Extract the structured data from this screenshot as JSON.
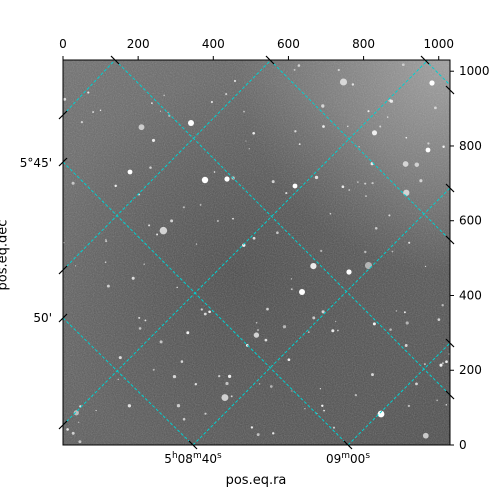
{
  "chart_data": {
    "type": "image",
    "title": "",
    "xlabel": "pos.eq.ra",
    "ylabel": "pos.eq.dec",
    "pixel_axes": {
      "x_range": [
        0,
        1030
      ],
      "y_range": [
        0,
        1030
      ],
      "top_ticks": [
        "0",
        "200",
        "400",
        "600",
        "800",
        "1000"
      ],
      "top_tick_values": [
        0,
        200,
        400,
        600,
        800,
        1000
      ],
      "right_ticks": [
        "0",
        "200",
        "400",
        "600",
        "800",
        "1000"
      ],
      "right_tick_values": [
        0,
        200,
        400,
        600,
        800,
        1000
      ]
    },
    "world_ticks": {
      "bottom": [
        {
          "label": "5h08m40s",
          "parts": [
            "5",
            "h",
            "08",
            "m",
            "40",
            "s"
          ]
        },
        {
          "label": "09m00s",
          "parts": [
            "",
            "",
            "09",
            "m",
            "00",
            "s"
          ]
        }
      ],
      "left": [
        {
          "label": "5°45'"
        },
        {
          "label": "50'"
        }
      ]
    },
    "grid": true,
    "grid_color": "#00d0d0",
    "colormap": "gray"
  }
}
